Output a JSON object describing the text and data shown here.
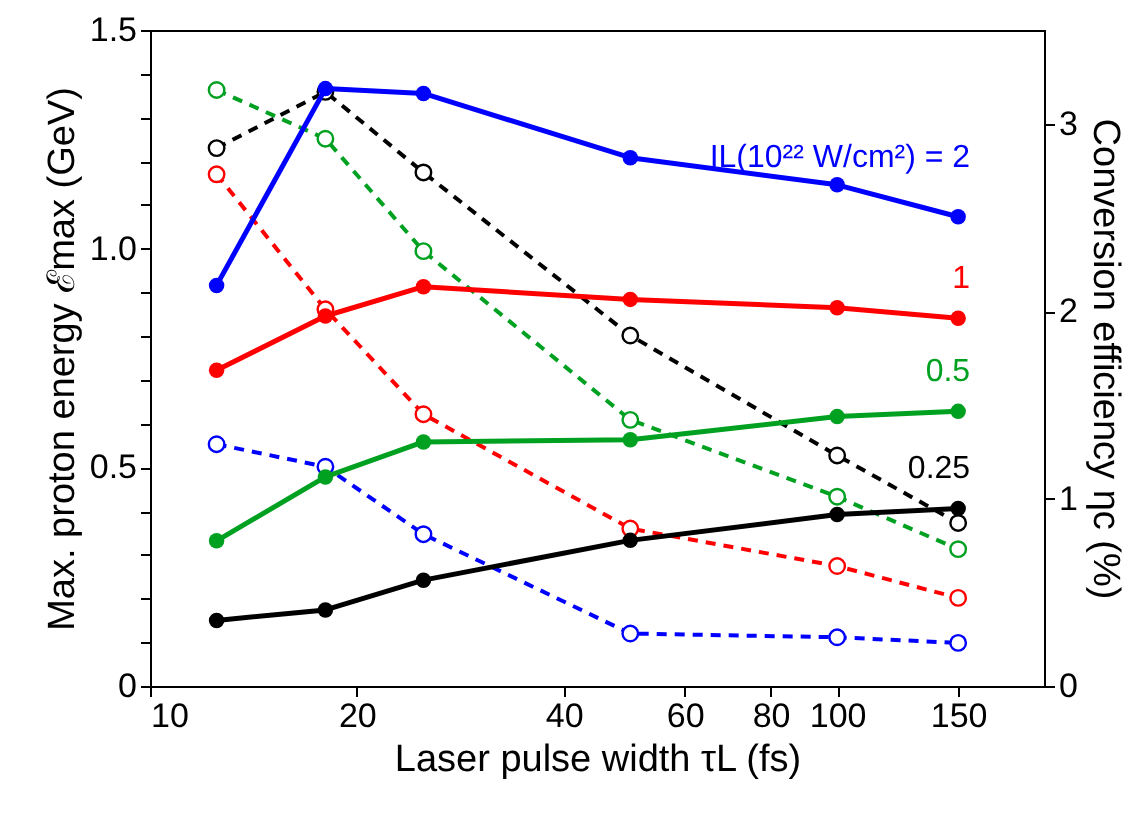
{
  "chart_data": {
    "type": "line",
    "xlabel": "Laser pulse width τL (fs)",
    "ylabel": "Max. proton energy ℰmax (GeV)",
    "y2label": "Conversion efficiency ηc (%)",
    "x": [
      12.5,
      18,
      25,
      50,
      100,
      150
    ],
    "log": "x",
    "xlim": [
      10,
      200
    ],
    "xticks": [
      10,
      20,
      40,
      60,
      80,
      100,
      150
    ],
    "ylim": [
      0,
      1.5
    ],
    "yticks": [
      {
        "value": 0,
        "label": "0"
      },
      {
        "value": 0.1,
        "label": null
      },
      {
        "value": 0.2,
        "label": null
      },
      {
        "value": 0.3,
        "label": null
      },
      {
        "value": 0.4,
        "label": null
      },
      {
        "value": 0.5,
        "label": "0.5"
      },
      {
        "value": 0.6,
        "label": null
      },
      {
        "value": 0.7,
        "label": null
      },
      {
        "value": 0.8,
        "label": null
      },
      {
        "value": 0.9,
        "label": null
      },
      {
        "value": 1,
        "label": "1.0"
      },
      {
        "value": 1.1,
        "label": null
      },
      {
        "value": 1.2,
        "label": null
      },
      {
        "value": 1.3,
        "label": null
      },
      {
        "value": 1.4,
        "label": null
      },
      {
        "value": 1.5,
        "label": "1.5"
      }
    ],
    "y2lim": [
      0,
      3.5
    ],
    "y2ticks": [
      0,
      1,
      2,
      3
    ],
    "grid": false,
    "marker": "circle",
    "series": [
      {
        "name": "IL(10²² W/cm²) = 2",
        "color": "#0000ff",
        "line_style": "solid",
        "values": [
          0.916,
          1.366,
          1.355,
          1.208,
          1.146,
          1.073
        ]
      },
      {
        "name": "1",
        "color": "#ff0000",
        "line_style": "solid",
        "values": [
          0.722,
          0.846,
          0.913,
          0.884,
          0.865,
          0.841
        ]
      },
      {
        "name": "0.5",
        "color": "#00a020",
        "line_style": "solid",
        "values": [
          0.332,
          0.478,
          0.558,
          0.563,
          0.616,
          0.628
        ]
      },
      {
        "name": "0.25",
        "color": "#000000",
        "line_style": "solid",
        "values": [
          0.15,
          0.174,
          0.242,
          0.333,
          0.392,
          0.406
        ]
      },
      {
        "color": "#0000ff",
        "line_style": "dashed",
        "axis": "y2",
        "values": [
          1.29,
          1.17,
          0.81,
          0.28,
          0.26,
          0.23
        ]
      },
      {
        "color": "#ff0000",
        "line_style": "dashed",
        "axis": "y2",
        "values": [
          2.73,
          2.01,
          1.45,
          0.84,
          0.64,
          0.47
        ]
      },
      {
        "color": "#00a020",
        "line_style": "dashed",
        "axis": "y2",
        "values": [
          3.18,
          2.92,
          2.32,
          1.42,
          1.01,
          0.73
        ]
      },
      {
        "color": "#000000",
        "line_style": "dashed",
        "axis": "y2",
        "values": [
          2.87,
          3.17,
          2.74,
          1.87,
          1.23,
          0.87
        ]
      }
    ]
  }
}
